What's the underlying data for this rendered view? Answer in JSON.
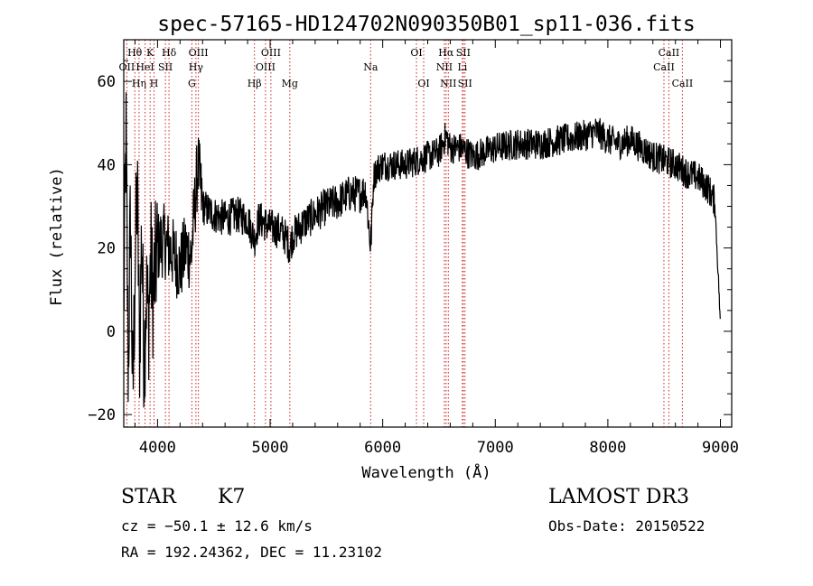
{
  "chart_data": {
    "type": "line",
    "title": "spec-57165-HD124702N090350B01_sp11-036.fits",
    "xlabel": "Wavelength (Å)",
    "ylabel": "Flux (relative)",
    "xlim": [
      3700,
      9100
    ],
    "ylim": [
      -23,
      70
    ],
    "xticks": [
      4000,
      5000,
      6000,
      7000,
      8000,
      9000
    ],
    "xtick_labels": [
      "4000",
      "5000",
      "6000",
      "7000",
      "8000",
      "9000"
    ],
    "yticks": [
      -20,
      0,
      20,
      40,
      60
    ],
    "ytick_labels": [
      "−20",
      "0",
      "20",
      "40",
      "60"
    ],
    "grid": false,
    "series": [
      {
        "name": "flux",
        "x": [
          3700,
          3720,
          3740,
          3760,
          3780,
          3800,
          3820,
          3840,
          3860,
          3880,
          3900,
          3920,
          3940,
          3960,
          3980,
          4000,
          4050,
          4100,
          4150,
          4200,
          4250,
          4300,
          4330,
          4360,
          4400,
          4500,
          4600,
          4700,
          4800,
          4861,
          4900,
          5000,
          5100,
          5150,
          5175,
          5200,
          5300,
          5400,
          5500,
          5600,
          5700,
          5800,
          5850,
          5893,
          5920,
          5950,
          6000,
          6100,
          6200,
          6300,
          6400,
          6500,
          6563,
          6600,
          6700,
          6800,
          6900,
          7000,
          7200,
          7400,
          7600,
          7800,
          7900,
          8000,
          8100,
          8200,
          8300,
          8400,
          8500,
          8600,
          8700,
          8800,
          8900,
          8950,
          8990,
          9000
        ],
        "values": [
          5,
          48,
          -10,
          30,
          -18,
          15,
          35,
          -5,
          25,
          -8,
          10,
          2,
          18,
          8,
          15,
          20,
          22,
          20,
          18,
          15,
          20,
          18,
          30,
          40,
          30,
          28,
          27,
          28,
          27,
          22,
          27,
          25,
          24,
          22,
          20,
          23,
          26,
          28,
          30,
          31,
          33,
          33,
          34,
          20,
          37,
          39,
          40,
          40,
          40,
          41,
          42,
          43,
          47,
          44,
          44,
          42,
          43,
          44,
          45,
          45,
          46,
          47,
          48,
          46,
          45,
          46,
          44,
          42,
          41,
          40,
          38,
          37,
          34,
          31,
          8,
          0
        ]
      }
    ],
    "line_markers": [
      {
        "label": "Hθ",
        "wavelength": 3798,
        "row": 1
      },
      {
        "label": "OII",
        "wavelength": 3727,
        "row": 2
      },
      {
        "label": "Hη",
        "wavelength": 3836,
        "row": 3
      },
      {
        "label": "K",
        "wavelength": 3934,
        "row": 1
      },
      {
        "label": "HeI",
        "wavelength": 3889,
        "row": 2
      },
      {
        "label": "H",
        "wavelength": 3969,
        "row": 3
      },
      {
        "label": "Hδ",
        "wavelength": 4102,
        "row": 1
      },
      {
        "label": "SII",
        "wavelength": 4070,
        "row": 2
      },
      {
        "label": "OIII",
        "wavelength": 4363,
        "row": 1
      },
      {
        "label": "Hγ",
        "wavelength": 4341,
        "row": 2
      },
      {
        "label": "G",
        "wavelength": 4305,
        "row": 3
      },
      {
        "label": "OIII",
        "wavelength": 5007,
        "row": 1
      },
      {
        "label": "OIII",
        "wavelength": 4959,
        "row": 2
      },
      {
        "label": "Hβ",
        "wavelength": 4861,
        "row": 3
      },
      {
        "label": "Mg",
        "wavelength": 5175,
        "row": 3
      },
      {
        "label": "Na",
        "wavelength": 5893,
        "row": 2
      },
      {
        "label": "OI",
        "wavelength": 6300,
        "row": 1
      },
      {
        "label": "OI",
        "wavelength": 6364,
        "row": 3
      },
      {
        "label": "Hα",
        "wavelength": 6563,
        "row": 1
      },
      {
        "label": "NII",
        "wavelength": 6548,
        "row": 2
      },
      {
        "label": "NII",
        "wavelength": 6583,
        "row": 3
      },
      {
        "label": "SII",
        "wavelength": 6716,
        "row": 1
      },
      {
        "label": "Li",
        "wavelength": 6708,
        "row": 2
      },
      {
        "label": "SII",
        "wavelength": 6731,
        "row": 3
      },
      {
        "label": "CaII",
        "wavelength": 8542,
        "row": 1
      },
      {
        "label": "CaII",
        "wavelength": 8498,
        "row": 2
      },
      {
        "label": "CaII",
        "wavelength": 8662,
        "row": 3
      }
    ],
    "colors": {
      "spectrum": "#000000",
      "markers": "#cc2222",
      "axes": "#000000"
    }
  },
  "info": {
    "object_class": "STAR",
    "subclass": "K7",
    "survey": "LAMOST DR3",
    "redshift_line": "cz = −50.1 ± 12.6 km/s",
    "obs_date_line": "Obs-Date: 20150522",
    "coords_line": "RA = 192.24362, DEC =  11.23102"
  }
}
